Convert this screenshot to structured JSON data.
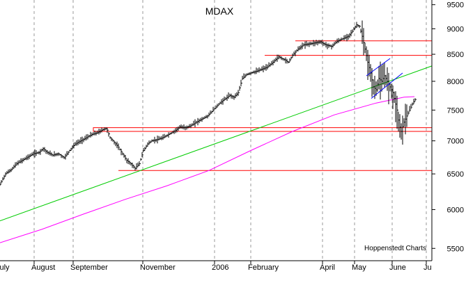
{
  "chart_data": {
    "type": "line",
    "title": "MDAX",
    "credit": "Hoppenstedt Charts",
    "x_tick_labels": [
      "July",
      "August",
      "September",
      "November",
      "2006",
      "February",
      "April",
      "May",
      "June",
      "Ju"
    ],
    "y_tick_labels": [
      5500,
      6000,
      6500,
      7000,
      7500,
      8000,
      8500,
      9000,
      9500
    ],
    "ylim": [
      5350,
      9600
    ],
    "y_scale": "log",
    "grid": "vertical dashed",
    "series": [
      {
        "kind": "price-bars",
        "color": "#000000",
        "points": [
          {
            "x": 0,
            "y": 6350
          },
          {
            "x": 8,
            "y": 6500
          },
          {
            "x": 16,
            "y": 6560
          },
          {
            "x": 24,
            "y": 6650
          },
          {
            "x": 32,
            "y": 6700
          },
          {
            "x": 40,
            "y": 6750
          },
          {
            "x": 48,
            "y": 6800
          },
          {
            "x": 56,
            "y": 6820
          },
          {
            "x": 62,
            "y": 6880
          },
          {
            "x": 68,
            "y": 6820
          },
          {
            "x": 76,
            "y": 6780
          },
          {
            "x": 84,
            "y": 6800
          },
          {
            "x": 92,
            "y": 6740
          },
          {
            "x": 100,
            "y": 6850
          },
          {
            "x": 108,
            "y": 6950
          },
          {
            "x": 116,
            "y": 7000
          },
          {
            "x": 124,
            "y": 7050
          },
          {
            "x": 132,
            "y": 7100
          },
          {
            "x": 140,
            "y": 7130
          },
          {
            "x": 148,
            "y": 7180
          },
          {
            "x": 153,
            "y": 7200
          },
          {
            "x": 158,
            "y": 7050
          },
          {
            "x": 164,
            "y": 6980
          },
          {
            "x": 170,
            "y": 6900
          },
          {
            "x": 176,
            "y": 6800
          },
          {
            "x": 182,
            "y": 6700
          },
          {
            "x": 188,
            "y": 6650
          },
          {
            "x": 194,
            "y": 6580
          },
          {
            "x": 200,
            "y": 6650
          },
          {
            "x": 206,
            "y": 6850
          },
          {
            "x": 212,
            "y": 6950
          },
          {
            "x": 218,
            "y": 7000
          },
          {
            "x": 226,
            "y": 7020
          },
          {
            "x": 234,
            "y": 7050
          },
          {
            "x": 242,
            "y": 7100
          },
          {
            "x": 250,
            "y": 7150
          },
          {
            "x": 258,
            "y": 7220
          },
          {
            "x": 266,
            "y": 7210
          },
          {
            "x": 274,
            "y": 7240
          },
          {
            "x": 282,
            "y": 7300
          },
          {
            "x": 290,
            "y": 7350
          },
          {
            "x": 298,
            "y": 7400
          },
          {
            "x": 306,
            "y": 7500
          },
          {
            "x": 314,
            "y": 7600
          },
          {
            "x": 322,
            "y": 7680
          },
          {
            "x": 330,
            "y": 7750
          },
          {
            "x": 336,
            "y": 7720
          },
          {
            "x": 342,
            "y": 7800
          },
          {
            "x": 348,
            "y": 8050
          },
          {
            "x": 354,
            "y": 8120
          },
          {
            "x": 360,
            "y": 8150
          },
          {
            "x": 368,
            "y": 8180
          },
          {
            "x": 376,
            "y": 8220
          },
          {
            "x": 384,
            "y": 8260
          },
          {
            "x": 392,
            "y": 8350
          },
          {
            "x": 400,
            "y": 8450
          },
          {
            "x": 408,
            "y": 8400
          },
          {
            "x": 414,
            "y": 8350
          },
          {
            "x": 420,
            "y": 8480
          },
          {
            "x": 428,
            "y": 8600
          },
          {
            "x": 436,
            "y": 8680
          },
          {
            "x": 444,
            "y": 8700
          },
          {
            "x": 452,
            "y": 8720
          },
          {
            "x": 460,
            "y": 8740
          },
          {
            "x": 468,
            "y": 8680
          },
          {
            "x": 476,
            "y": 8650
          },
          {
            "x": 484,
            "y": 8750
          },
          {
            "x": 492,
            "y": 8800
          },
          {
            "x": 500,
            "y": 8850
          },
          {
            "x": 506,
            "y": 8950
          },
          {
            "x": 512,
            "y": 9080
          },
          {
            "x": 516,
            "y": 9050
          },
          {
            "x": 520,
            "y": 8850
          },
          {
            "x": 524,
            "y": 8600
          },
          {
            "x": 528,
            "y": 8350
          },
          {
            "x": 532,
            "y": 8150
          },
          {
            "x": 536,
            "y": 7900
          },
          {
            "x": 540,
            "y": 7850
          },
          {
            "x": 544,
            "y": 8050
          },
          {
            "x": 548,
            "y": 8000
          },
          {
            "x": 552,
            "y": 8100
          },
          {
            "x": 556,
            "y": 8000
          },
          {
            "x": 560,
            "y": 7900
          },
          {
            "x": 564,
            "y": 7800
          },
          {
            "x": 567,
            "y": 7650
          },
          {
            "x": 570,
            "y": 7500
          },
          {
            "x": 573,
            "y": 7250
          },
          {
            "x": 576,
            "y": 7150
          },
          {
            "x": 580,
            "y": 7300
          },
          {
            "x": 584,
            "y": 7400
          },
          {
            "x": 588,
            "y": 7500
          },
          {
            "x": 592,
            "y": 7600
          },
          {
            "x": 596,
            "y": 7680
          }
        ]
      }
    ],
    "overlays": [
      {
        "kind": "support-line",
        "color": "#ff0000",
        "y": 6550
      },
      {
        "kind": "support-band",
        "color": "#ff0000",
        "y_top": 7210,
        "y_bottom": 7150
      },
      {
        "kind": "resistance-line",
        "color": "#ff0000",
        "y": 8480
      },
      {
        "kind": "resistance-line",
        "color": "#ff0000",
        "y": 8760
      },
      {
        "kind": "trendline",
        "color": "#00cc00",
        "from": {
          "x": 0,
          "y": 5850
        },
        "to": {
          "x": 620,
          "y": 8280
        }
      },
      {
        "kind": "moving-average",
        "color": "#ff00ff",
        "points": [
          {
            "x": 0,
            "y": 5570
          },
          {
            "x": 60,
            "y": 5740
          },
          {
            "x": 120,
            "y": 5940
          },
          {
            "x": 180,
            "y": 6140
          },
          {
            "x": 240,
            "y": 6330
          },
          {
            "x": 300,
            "y": 6550
          },
          {
            "x": 360,
            "y": 6850
          },
          {
            "x": 420,
            "y": 7150
          },
          {
            "x": 480,
            "y": 7420
          },
          {
            "x": 540,
            "y": 7620
          },
          {
            "x": 580,
            "y": 7720
          },
          {
            "x": 595,
            "y": 7730
          }
        ]
      },
      {
        "kind": "channel-line",
        "color": "#0000ff",
        "from": {
          "x": 526,
          "y": 8100
        },
        "to": {
          "x": 560,
          "y": 8420
        }
      },
      {
        "kind": "channel-line",
        "color": "#0000ff",
        "from": {
          "x": 533,
          "y": 7700
        },
        "to": {
          "x": 578,
          "y": 8150
        }
      }
    ]
  }
}
